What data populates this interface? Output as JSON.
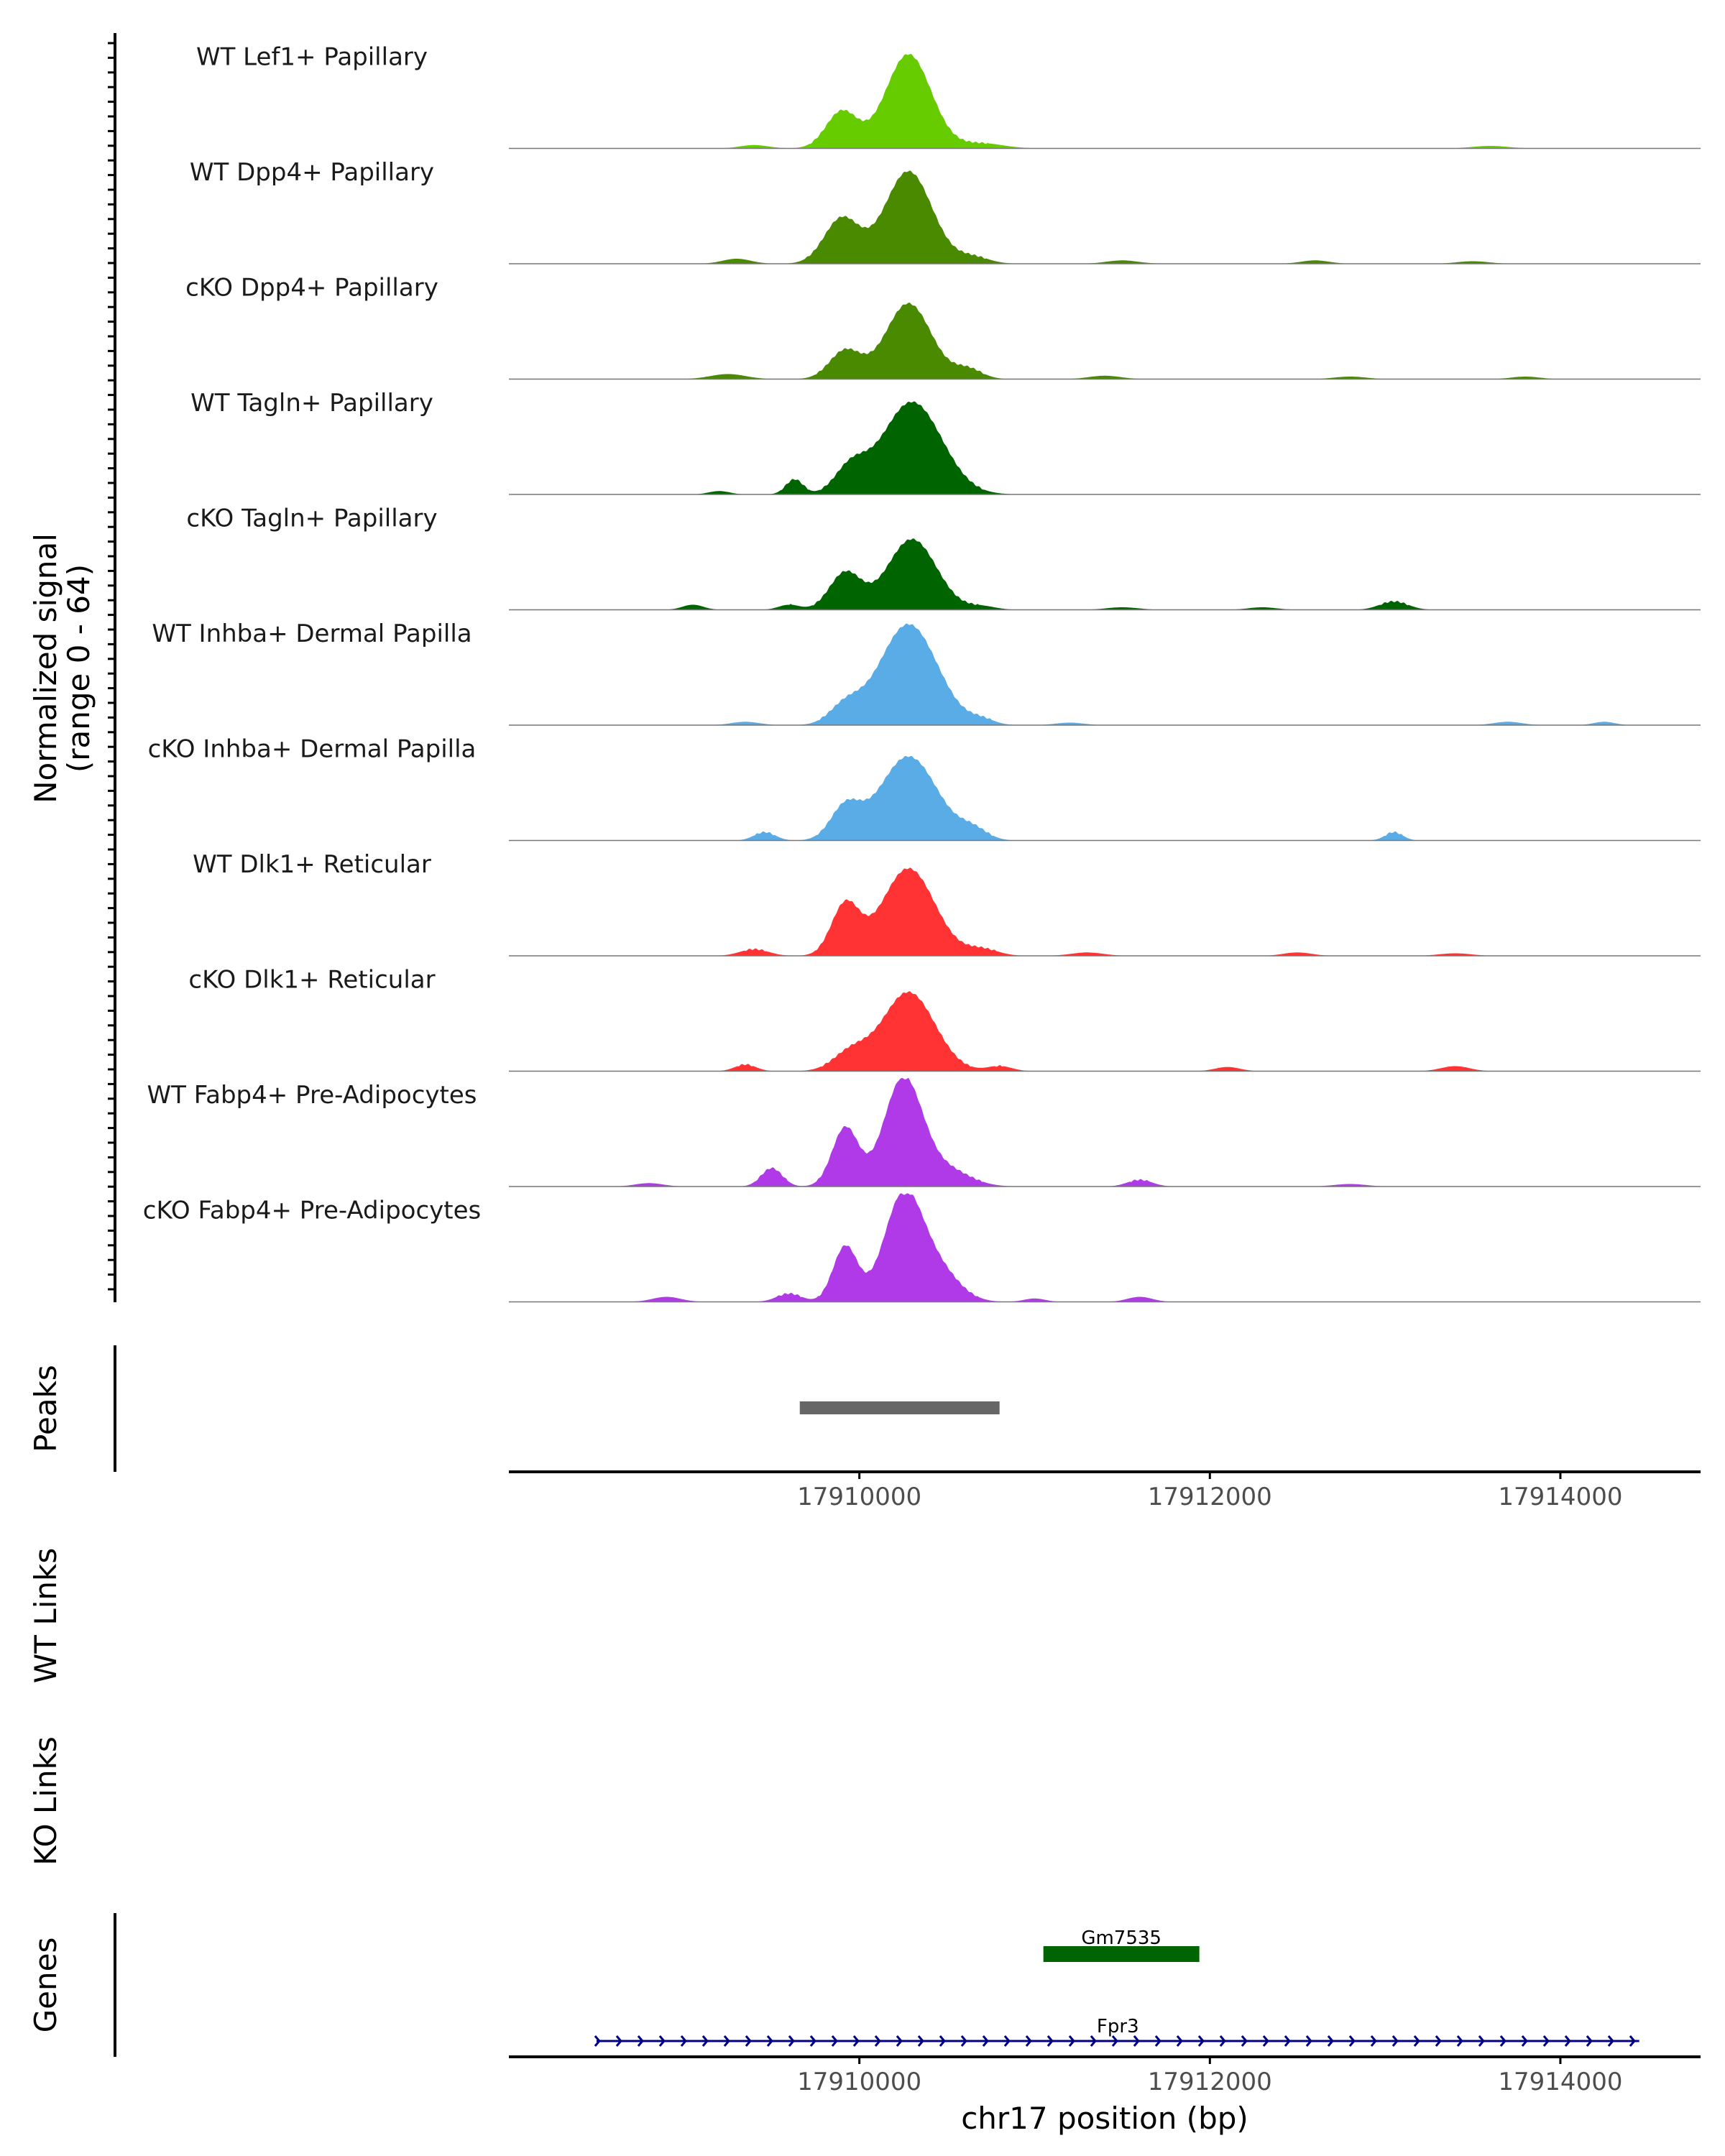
{
  "chart_data": {
    "type": "area",
    "title": "",
    "xlabel": "chr17 position (bp)",
    "xlim": [
      17908000,
      17914800
    ],
    "x_ticks": [
      17910000,
      17912000,
      17914000
    ],
    "x_tick_labels": [
      "17910000",
      "17912000",
      "17914000"
    ],
    "coverage": {
      "ylabel_line1": "Normalized signal",
      "ylabel_line2": "(range 0 - 64)",
      "ylim": [
        0,
        64
      ],
      "tracks": [
        {
          "name": "WT Lef1+ Papillary",
          "color": "#66CC00",
          "peaks": [
            [
              17909900,
              22,
              90
            ],
            [
              17910280,
              56,
              130
            ],
            [
              17910700,
              3,
              120
            ],
            [
              17909400,
              2,
              80
            ],
            [
              17913600,
              1.5,
              100
            ]
          ]
        },
        {
          "name": "WT Dpp4+ Papillary",
          "color": "#4A8A00",
          "peaks": [
            [
              17909900,
              27,
              100
            ],
            [
              17910280,
              55,
              135
            ],
            [
              17910650,
              4,
              90
            ],
            [
              17909300,
              3,
              80
            ],
            [
              17911500,
              2,
              90
            ],
            [
              17912600,
              2,
              80
            ],
            [
              17913500,
              1.5,
              90
            ]
          ]
        },
        {
          "name": "cKO Dpp4+ Papillary",
          "color": "#4A8A00",
          "peaks": [
            [
              17909920,
              17,
              90
            ],
            [
              17910280,
              45,
              130
            ],
            [
              17910620,
              6,
              80
            ],
            [
              17909250,
              3,
              100
            ],
            [
              17911400,
              2,
              90
            ],
            [
              17912800,
              1.5,
              90
            ],
            [
              17913800,
              1.5,
              80
            ]
          ]
        },
        {
          "name": "WT Tagln+ Papillary",
          "color": "#006400",
          "peaks": [
            [
              17909630,
              9,
              50
            ],
            [
              17909950,
              15,
              90
            ],
            [
              17910300,
              55,
              170
            ],
            [
              17909200,
              2,
              60
            ]
          ]
        },
        {
          "name": "cKO Tagln+ Papillary",
          "color": "#006400",
          "peaks": [
            [
              17909920,
              22,
              90
            ],
            [
              17910300,
              42,
              140
            ],
            [
              17909050,
              3,
              60
            ],
            [
              17909600,
              3,
              60
            ],
            [
              17910700,
              2,
              80
            ],
            [
              17911500,
              1.5,
              90
            ],
            [
              17912300,
              1.5,
              80
            ],
            [
              17913050,
              5,
              80
            ]
          ]
        },
        {
          "name": "WT Inhba+ Dermal Papilla",
          "color": "#5AACE6",
          "peaks": [
            [
              17909920,
              11,
              90
            ],
            [
              17910280,
              60,
              165
            ],
            [
              17910700,
              3,
              70
            ],
            [
              17909350,
              2,
              80
            ],
            [
              17911200,
              1.5,
              80
            ],
            [
              17913700,
              2,
              80
            ],
            [
              17914250,
              2,
              60
            ]
          ]
        },
        {
          "name": "cKO Inhba+ Dermal Papilla",
          "color": "#5AACE6",
          "peaks": [
            [
              17909920,
              19,
              85
            ],
            [
              17910280,
              50,
              165
            ],
            [
              17910650,
              6,
              80
            ],
            [
              17909460,
              5,
              60
            ],
            [
              17913050,
              5,
              50
            ]
          ]
        },
        {
          "name": "WT Dlk1+ Reticular",
          "color": "#FF3333",
          "peaks": [
            [
              17909920,
              30,
              80
            ],
            [
              17910280,
              52,
              150
            ],
            [
              17910700,
              4,
              90
            ],
            [
              17909400,
              4,
              80
            ],
            [
              17911300,
              2,
              90
            ],
            [
              17912500,
              2,
              80
            ],
            [
              17913400,
              1.5,
              90
            ]
          ]
        },
        {
          "name": "cKO Dlk1+ Reticular",
          "color": "#FF3333",
          "peaks": [
            [
              17909950,
              11,
              100
            ],
            [
              17910280,
              47,
              150
            ],
            [
              17909350,
              4,
              60
            ],
            [
              17910800,
              3,
              70
            ],
            [
              17912100,
              2.5,
              70
            ],
            [
              17913400,
              3,
              80
            ]
          ]
        },
        {
          "name": "WT Fabp4+ Pre-Adipocytes",
          "color": "#B03AE8",
          "peaks": [
            [
              17909920,
              35,
              75
            ],
            [
              17910250,
              64,
              110
            ],
            [
              17910500,
              10,
              130
            ],
            [
              17909500,
              11,
              60
            ],
            [
              17908800,
              2,
              80
            ],
            [
              17911600,
              4,
              70
            ],
            [
              17912800,
              1.5,
              90
            ]
          ]
        },
        {
          "name": "cKO Fabp4+ Pre-Adipocytes",
          "color": "#B03AE8",
          "peaks": [
            [
              17909920,
              33,
              70
            ],
            [
              17910250,
              62,
              110
            ],
            [
              17910450,
              18,
              120
            ],
            [
              17908900,
              3,
              80
            ],
            [
              17909600,
              5,
              70
            ],
            [
              17911000,
              2,
              60
            ],
            [
              17911600,
              3,
              70
            ]
          ]
        }
      ]
    },
    "peaks_track": {
      "label": "Peaks",
      "regions": [
        {
          "start": 17909660,
          "end": 17910800,
          "color": "#666666"
        }
      ]
    },
    "links_tracks": [
      {
        "label": "WT Links",
        "links": []
      },
      {
        "label": "KO Links",
        "links": []
      }
    ],
    "genes_track": {
      "label": "Genes",
      "genes": [
        {
          "name": "Gm7535",
          "start": 17911050,
          "end": 17911940,
          "strand": "+",
          "color": "#006400",
          "row": 1
        },
        {
          "name": "Fpr3",
          "start": 17908500,
          "end": 17914450,
          "strand": "+",
          "color": "#000080",
          "row": 2
        }
      ]
    }
  }
}
